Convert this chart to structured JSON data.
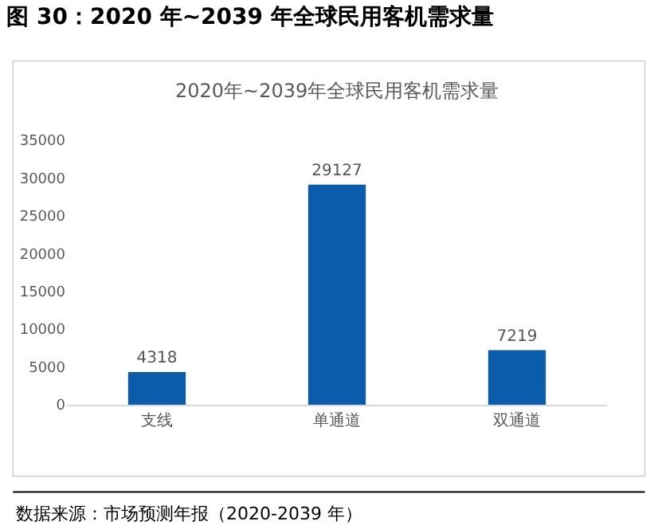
{
  "chart_data": {
    "type": "bar",
    "title": "图 30：2020 年~2039 年全球民用客机需求量",
    "subtitle": "2020年~2039年全球民用客机需求量",
    "categories": [
      "支线",
      "单通道",
      "双通道"
    ],
    "values": [
      4318,
      29127,
      7219
    ],
    "color": "#0b5cab",
    "ylim": [
      0,
      35000
    ],
    "yticks": [
      0,
      5000,
      10000,
      15000,
      20000,
      25000,
      30000,
      35000
    ],
    "data_labels": true,
    "grid": false,
    "legend": false,
    "annotations": [
      "数据来源：市场预测年报（2020-2039 年）"
    ]
  }
}
